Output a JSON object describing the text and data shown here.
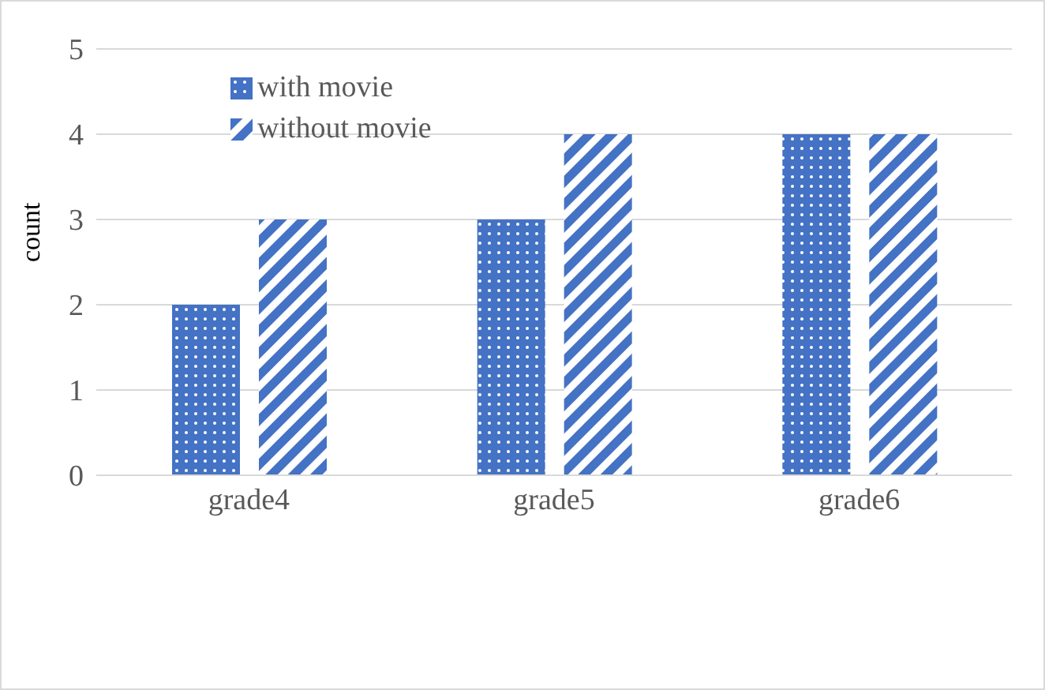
{
  "chart_data": {
    "type": "bar",
    "ylabel": "count",
    "categories": [
      "grade4",
      "grade5",
      "grade6"
    ],
    "series": [
      {
        "name": "with movie",
        "color": "#4472c4",
        "values": [
          2,
          3,
          4
        ]
      },
      {
        "name": "without movie",
        "color": "#4472c4",
        "values": [
          3,
          4,
          4
        ]
      }
    ],
    "ylim": [
      0,
      5
    ],
    "yticks": [
      0,
      1,
      2,
      3,
      4,
      5
    ],
    "grid": "y",
    "legend": "top left"
  }
}
